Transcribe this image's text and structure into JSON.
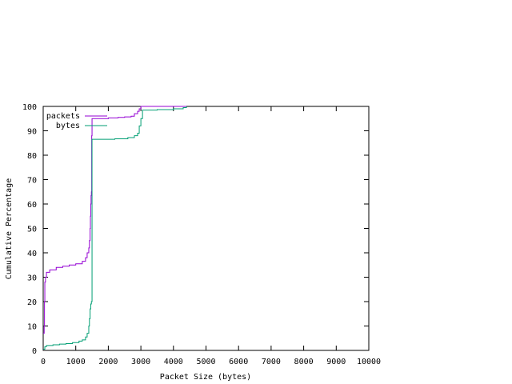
{
  "chart_data": {
    "type": "line",
    "title": "",
    "xlabel": "Packet Size (bytes)",
    "ylabel": "Cumulative Percentage",
    "xlim": [
      0,
      10000
    ],
    "ylim": [
      0,
      100
    ],
    "x_ticks": [
      0,
      1000,
      2000,
      3000,
      4000,
      5000,
      6000,
      7000,
      8000,
      9000,
      10000
    ],
    "y_ticks": [
      0,
      10,
      20,
      30,
      40,
      50,
      60,
      70,
      80,
      90,
      100
    ],
    "grid": false,
    "legend_position": "top-left",
    "series": [
      {
        "name": "packets",
        "color": "#9400d3",
        "step": true,
        "points": [
          [
            0,
            7
          ],
          [
            30,
            10
          ],
          [
            40,
            20
          ],
          [
            50,
            28
          ],
          [
            70,
            30
          ],
          [
            100,
            32
          ],
          [
            200,
            33
          ],
          [
            400,
            34
          ],
          [
            600,
            34.5
          ],
          [
            800,
            35
          ],
          [
            1000,
            35.5
          ],
          [
            1200,
            36.5
          ],
          [
            1300,
            38
          ],
          [
            1350,
            40
          ],
          [
            1400,
            42
          ],
          [
            1420,
            45
          ],
          [
            1440,
            50
          ],
          [
            1450,
            55
          ],
          [
            1460,
            60
          ],
          [
            1470,
            63.5
          ],
          [
            1480,
            65
          ],
          [
            1490,
            88
          ],
          [
            1500,
            95
          ],
          [
            1800,
            95
          ],
          [
            2000,
            95.3
          ],
          [
            2300,
            95.5
          ],
          [
            2500,
            95.7
          ],
          [
            2700,
            96
          ],
          [
            2800,
            97
          ],
          [
            2900,
            98
          ],
          [
            2950,
            99
          ],
          [
            3000,
            100
          ],
          [
            3500,
            100
          ],
          [
            4000,
            100
          ],
          [
            4400,
            100
          ]
        ]
      },
      {
        "name": "bytes",
        "color": "#009e73",
        "step": true,
        "points": [
          [
            0,
            0.5
          ],
          [
            50,
            1.5
          ],
          [
            100,
            2
          ],
          [
            300,
            2.3
          ],
          [
            500,
            2.6
          ],
          [
            700,
            2.8
          ],
          [
            900,
            3.2
          ],
          [
            1100,
            3.8
          ],
          [
            1200,
            4.3
          ],
          [
            1300,
            5.5
          ],
          [
            1350,
            7
          ],
          [
            1400,
            10
          ],
          [
            1420,
            13
          ],
          [
            1440,
            17
          ],
          [
            1460,
            19
          ],
          [
            1480,
            20
          ],
          [
            1500,
            86.5
          ],
          [
            1800,
            86.5
          ],
          [
            2200,
            86.7
          ],
          [
            2600,
            87.2
          ],
          [
            2800,
            88
          ],
          [
            2900,
            89
          ],
          [
            2950,
            92
          ],
          [
            3000,
            95
          ],
          [
            3050,
            98.5
          ],
          [
            3500,
            98.7
          ],
          [
            4000,
            99
          ],
          [
            4300,
            99.5
          ],
          [
            4400,
            100
          ]
        ]
      }
    ]
  }
}
